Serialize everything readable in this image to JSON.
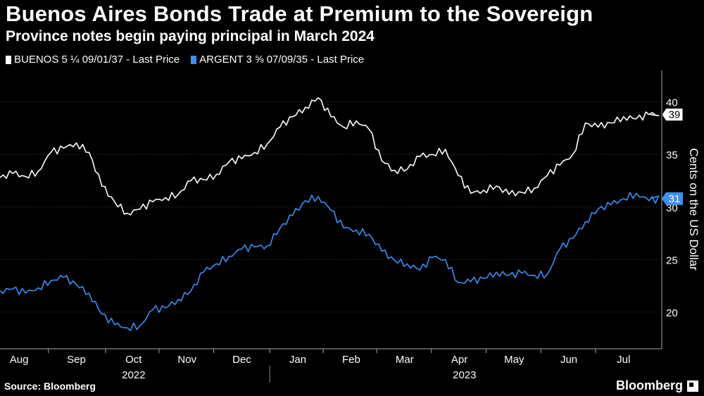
{
  "header": {
    "title": "Buenos Aires Bonds Trade at Premium to the Sovereign",
    "subtitle": "Province notes begin paying principal in March 2024"
  },
  "footer": {
    "source": "Source: Bloomberg",
    "brand": "Bloomberg"
  },
  "colors": {
    "series1": "#ffffff",
    "series2": "#3f8ff0",
    "background": "#000000",
    "grid": "#444444"
  },
  "chart_data": {
    "type": "line",
    "title": "Buenos Aires Bonds Trade at Premium to the Sovereign",
    "subtitle": "Province notes begin paying principal in March 2024",
    "ylabel": "Cents on the US Dollar",
    "xlabel": "",
    "ylim": [
      16.5,
      43
    ],
    "yticks": [
      20,
      25,
      30,
      35,
      40
    ],
    "xlim": [
      0,
      52
    ],
    "month_ticks": [
      {
        "label": "Aug",
        "x": 1.5
      },
      {
        "label": "Sep",
        "x": 6.0
      },
      {
        "label": "Oct",
        "x": 10.5
      },
      {
        "label": "Nov",
        "x": 14.7
      },
      {
        "label": "Dec",
        "x": 19.0
      },
      {
        "label": "Jan",
        "x": 23.4
      },
      {
        "label": "Feb",
        "x": 27.6
      },
      {
        "label": "Mar",
        "x": 31.8
      },
      {
        "label": "Apr",
        "x": 36.1
      },
      {
        "label": "May",
        "x": 40.4
      },
      {
        "label": "Jun",
        "x": 44.7
      },
      {
        "label": "Jul",
        "x": 49.0
      }
    ],
    "year_labels": [
      {
        "label": "2022",
        "x": 10.5
      },
      {
        "label": "2023",
        "x": 36.5
      }
    ],
    "year_divider_x": 21.2,
    "series": [
      {
        "name": "BUENOS 5 ¼ 09/01/37 - Last Price",
        "last_label": "39",
        "last_value": 38.8,
        "x": [
          0,
          1,
          2,
          3,
          4,
          5,
          6,
          7,
          8,
          9,
          10,
          11,
          12,
          13,
          14,
          15,
          16,
          17,
          18,
          19,
          20,
          21,
          22,
          23,
          24,
          25,
          26,
          27,
          28,
          29,
          30,
          31,
          32,
          33,
          34,
          35,
          36,
          37,
          38,
          39,
          40,
          41,
          42,
          43,
          44,
          45,
          46,
          47,
          48,
          49,
          50,
          51,
          52
        ],
        "values": [
          32.8,
          33.2,
          32.9,
          33.4,
          35.2,
          35.6,
          36.1,
          35.2,
          32.0,
          30.5,
          29.4,
          29.8,
          30.5,
          30.9,
          31.2,
          32.5,
          32.6,
          33.1,
          34.3,
          34.6,
          35.2,
          36.0,
          37.6,
          38.6,
          39.5,
          40.4,
          38.6,
          37.6,
          38.2,
          37.4,
          34.4,
          33.5,
          33.6,
          34.8,
          35.0,
          35.5,
          33.0,
          31.3,
          31.6,
          32.0,
          31.2,
          31.4,
          31.8,
          33.0,
          34.0,
          35.0,
          38.0,
          37.6,
          38.0,
          38.6,
          38.4,
          38.8,
          38.8
        ]
      },
      {
        "name": "ARGENT 3 ⅝ 07/09/35 - Last Price",
        "last_label": "31",
        "last_value": 30.8,
        "x": [
          0,
          1,
          2,
          3,
          4,
          5,
          6,
          7,
          8,
          9,
          10,
          11,
          12,
          13,
          14,
          15,
          16,
          17,
          18,
          19,
          20,
          21,
          22,
          23,
          24,
          25,
          26,
          27,
          28,
          29,
          30,
          31,
          32,
          33,
          34,
          35,
          36,
          37,
          38,
          39,
          40,
          41,
          42,
          43,
          44,
          45,
          46,
          47,
          48,
          49,
          50,
          51,
          52
        ],
        "values": [
          22.0,
          22.2,
          21.8,
          22.3,
          23.0,
          23.3,
          22.6,
          21.8,
          19.8,
          18.8,
          18.5,
          18.7,
          20.2,
          20.4,
          21.2,
          22.0,
          23.8,
          24.6,
          25.3,
          26.0,
          26.2,
          26.3,
          28.0,
          29.2,
          30.6,
          31.0,
          29.7,
          28.0,
          27.8,
          27.4,
          25.8,
          24.9,
          24.6,
          24.0,
          25.2,
          25.0,
          22.8,
          22.9,
          23.2,
          23.8,
          23.5,
          23.7,
          23.5,
          23.6,
          26.0,
          27.0,
          28.6,
          29.8,
          30.2,
          30.8,
          31.3,
          30.6,
          30.8
        ]
      }
    ]
  }
}
